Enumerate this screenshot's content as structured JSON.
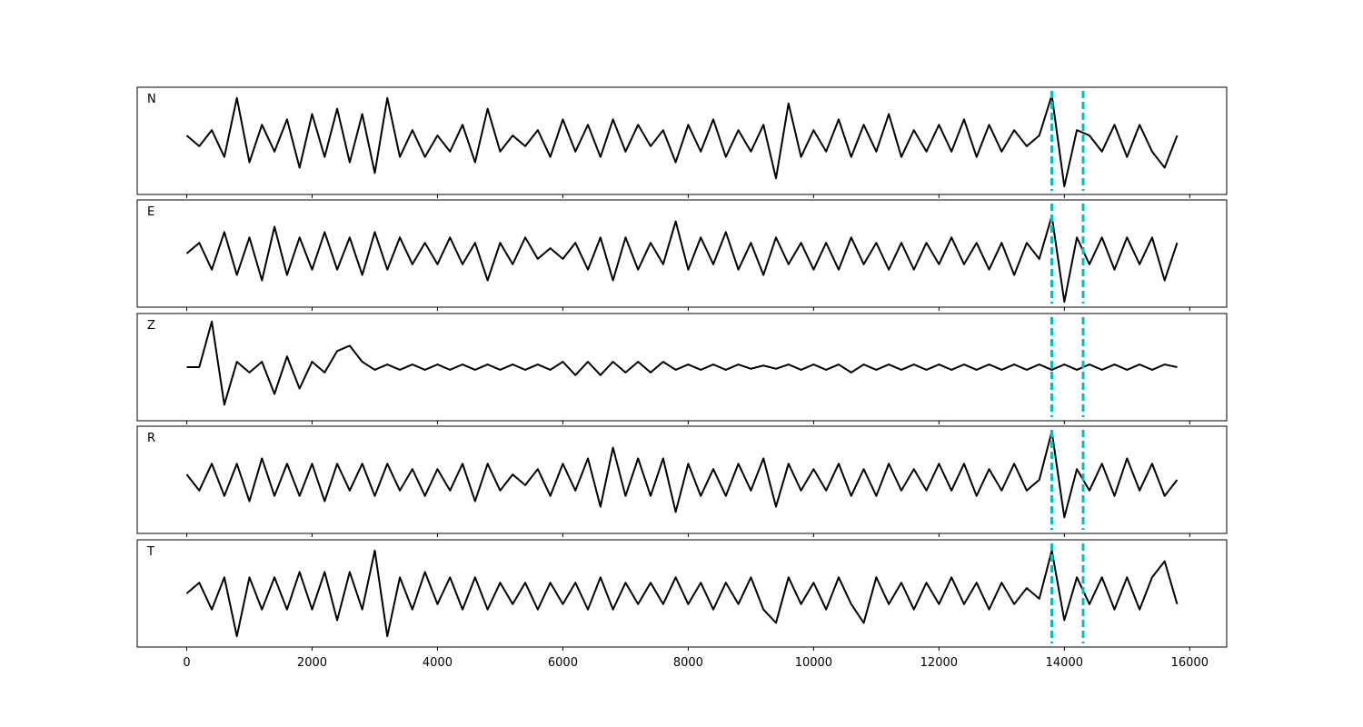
{
  "chart_data": [
    {
      "type": "line",
      "label": "N",
      "color": "#000000",
      "vlines": [
        13800,
        14300
      ],
      "vline_color": "#00bfbf",
      "xlim": [
        -790,
        16590
      ],
      "ylim": [
        -1,
        1
      ],
      "xticks": [
        0,
        2000,
        4000,
        6000,
        8000,
        10000,
        12000,
        14000,
        16000
      ],
      "x": [
        0,
        200,
        400,
        600,
        800,
        1000,
        1200,
        1400,
        1600,
        1800,
        2000,
        2200,
        2400,
        2600,
        2800,
        3000,
        3200,
        3400,
        3600,
        3800,
        4000,
        4200,
        4400,
        4600,
        4800,
        5000,
        5200,
        5400,
        5600,
        5800,
        6000,
        6200,
        6400,
        6600,
        6800,
        7000,
        7200,
        7400,
        7600,
        7800,
        8000,
        8200,
        8400,
        8600,
        8800,
        9000,
        9200,
        9400,
        9600,
        9800,
        10000,
        10200,
        10400,
        10600,
        10800,
        11000,
        11200,
        11400,
        11600,
        11800,
        12000,
        12200,
        12400,
        12600,
        12800,
        13000,
        13200,
        13400,
        13600,
        13800,
        14000,
        14200,
        14400,
        14600,
        14800,
        15000,
        15200,
        15400,
        15600,
        15800
      ],
      "values": [
        0.1,
        -0.1,
        0.2,
        -0.3,
        0.8,
        -0.4,
        0.3,
        -0.2,
        0.4,
        -0.5,
        0.5,
        -0.3,
        0.6,
        -0.4,
        0.5,
        -0.6,
        0.8,
        -0.3,
        0.2,
        -0.3,
        0.1,
        -0.2,
        0.3,
        -0.4,
        0.6,
        -0.2,
        0.1,
        -0.1,
        0.2,
        -0.3,
        0.4,
        -0.2,
        0.3,
        -0.3,
        0.4,
        -0.2,
        0.3,
        -0.1,
        0.2,
        -0.4,
        0.3,
        -0.2,
        0.4,
        -0.3,
        0.2,
        -0.2,
        0.3,
        -0.7,
        0.7,
        -0.3,
        0.2,
        -0.2,
        0.4,
        -0.3,
        0.3,
        -0.2,
        0.5,
        -0.3,
        0.2,
        -0.2,
        0.3,
        -0.2,
        0.4,
        -0.3,
        0.3,
        -0.2,
        0.2,
        -0.1,
        0.1,
        0.85,
        -0.85,
        0.2,
        0.1,
        -0.2,
        0.3,
        -0.3,
        0.3,
        -0.2,
        -0.5,
        0.1
      ]
    },
    {
      "type": "line",
      "label": "E",
      "color": "#000000",
      "vlines": [
        13800,
        14300
      ],
      "vline_color": "#00bfbf",
      "xlim": [
        -790,
        16590
      ],
      "ylim": [
        -1,
        1
      ],
      "xticks": [
        0,
        2000,
        4000,
        6000,
        8000,
        10000,
        12000,
        14000,
        16000
      ],
      "x": [
        0,
        200,
        400,
        600,
        800,
        1000,
        1200,
        1400,
        1600,
        1800,
        2000,
        2200,
        2400,
        2600,
        2800,
        3000,
        3200,
        3400,
        3600,
        3800,
        4000,
        4200,
        4400,
        4600,
        4800,
        5000,
        5200,
        5400,
        5600,
        5800,
        6000,
        6200,
        6400,
        6600,
        6800,
        7000,
        7200,
        7400,
        7600,
        7800,
        8000,
        8200,
        8400,
        8600,
        8800,
        9000,
        9200,
        9400,
        9600,
        9800,
        10000,
        10200,
        10400,
        10600,
        10800,
        11000,
        11200,
        11400,
        11600,
        11800,
        12000,
        12200,
        12400,
        12600,
        12800,
        13000,
        13200,
        13400,
        13600,
        13800,
        14000,
        14200,
        14400,
        14600,
        14800,
        15000,
        15200,
        15400,
        15600,
        15800
      ],
      "values": [
        0.0,
        0.2,
        -0.3,
        0.4,
        -0.4,
        0.3,
        -0.5,
        0.5,
        -0.4,
        0.3,
        -0.3,
        0.4,
        -0.3,
        0.3,
        -0.4,
        0.4,
        -0.3,
        0.3,
        -0.2,
        0.2,
        -0.2,
        0.3,
        -0.2,
        0.2,
        -0.5,
        0.2,
        -0.2,
        0.3,
        -0.1,
        0.1,
        -0.1,
        0.2,
        -0.3,
        0.3,
        -0.5,
        0.3,
        -0.3,
        0.2,
        -0.2,
        0.6,
        -0.3,
        0.3,
        -0.2,
        0.4,
        -0.3,
        0.2,
        -0.4,
        0.3,
        -0.2,
        0.2,
        -0.3,
        0.2,
        -0.3,
        0.3,
        -0.2,
        0.2,
        -0.3,
        0.2,
        -0.3,
        0.2,
        -0.2,
        0.3,
        -0.2,
        0.2,
        -0.3,
        0.2,
        -0.4,
        0.2,
        -0.1,
        0.7,
        -0.9,
        0.3,
        -0.2,
        0.3,
        -0.3,
        0.3,
        -0.2,
        0.3,
        -0.5,
        0.2
      ]
    },
    {
      "type": "line",
      "label": "Z",
      "color": "#000000",
      "vlines": [
        13800,
        14300
      ],
      "vline_color": "#00bfbf",
      "xlim": [
        -790,
        16590
      ],
      "ylim": [
        -1,
        1
      ],
      "xticks": [
        0,
        2000,
        4000,
        6000,
        8000,
        10000,
        12000,
        14000,
        16000
      ],
      "x": [
        0,
        200,
        400,
        600,
        800,
        1000,
        1200,
        1400,
        1600,
        1800,
        2000,
        2200,
        2400,
        2600,
        2800,
        3000,
        3200,
        3400,
        3600,
        3800,
        4000,
        4200,
        4400,
        4600,
        4800,
        5000,
        5200,
        5400,
        5600,
        5800,
        6000,
        6200,
        6400,
        6600,
        6800,
        7000,
        7200,
        7400,
        7600,
        7800,
        8000,
        8200,
        8400,
        8600,
        8800,
        9000,
        9200,
        9400,
        9600,
        9800,
        10000,
        10200,
        10400,
        10600,
        10800,
        11000,
        11200,
        11400,
        11600,
        11800,
        12000,
        12200,
        12400,
        12600,
        12800,
        13000,
        13200,
        13400,
        13600,
        13800,
        14000,
        14200,
        14400,
        14600,
        14800,
        15000,
        15200,
        15400,
        15600,
        15800
      ],
      "values": [
        0.0,
        0.0,
        0.85,
        -0.7,
        0.1,
        -0.1,
        0.1,
        -0.5,
        0.2,
        -0.4,
        0.1,
        -0.1,
        0.3,
        0.4,
        0.1,
        -0.05,
        0.05,
        -0.05,
        0.05,
        -0.05,
        0.05,
        -0.05,
        0.05,
        -0.05,
        0.05,
        -0.05,
        0.05,
        -0.05,
        0.05,
        -0.05,
        0.1,
        -0.15,
        0.1,
        -0.15,
        0.1,
        -0.1,
        0.1,
        -0.1,
        0.1,
        -0.05,
        0.05,
        -0.05,
        0.05,
        -0.05,
        0.05,
        -0.03,
        0.03,
        -0.03,
        0.05,
        -0.05,
        0.05,
        -0.05,
        0.05,
        -0.1,
        0.05,
        -0.05,
        0.05,
        -0.05,
        0.05,
        -0.05,
        0.05,
        -0.05,
        0.05,
        -0.05,
        0.05,
        -0.05,
        0.05,
        -0.05,
        0.05,
        -0.05,
        0.05,
        -0.05,
        0.05,
        -0.05,
        0.05,
        -0.05,
        0.05,
        -0.05,
        0.05,
        0.0
      ]
    },
    {
      "type": "line",
      "label": "R",
      "color": "#000000",
      "vlines": [
        13800,
        14300
      ],
      "vline_color": "#00bfbf",
      "xlim": [
        -790,
        16590
      ],
      "ylim": [
        -1,
        1
      ],
      "xticks": [
        0,
        2000,
        4000,
        6000,
        8000,
        10000,
        12000,
        14000,
        16000
      ],
      "x": [
        0,
        200,
        400,
        600,
        800,
        1000,
        1200,
        1400,
        1600,
        1800,
        2000,
        2200,
        2400,
        2600,
        2800,
        3000,
        3200,
        3400,
        3600,
        3800,
        4000,
        4200,
        4400,
        4600,
        4800,
        5000,
        5200,
        5400,
        5600,
        5800,
        6000,
        6200,
        6400,
        6600,
        6800,
        7000,
        7200,
        7400,
        7600,
        7800,
        8000,
        8200,
        8400,
        8600,
        8800,
        9000,
        9200,
        9400,
        9600,
        9800,
        10000,
        10200,
        10400,
        10600,
        10800,
        11000,
        11200,
        11400,
        11600,
        11800,
        12000,
        12200,
        12400,
        12600,
        12800,
        13000,
        13200,
        13400,
        13600,
        13800,
        14000,
        14200,
        14400,
        14600,
        14800,
        15000,
        15200,
        15400,
        15600,
        15800
      ],
      "values": [
        0.1,
        -0.2,
        0.3,
        -0.3,
        0.3,
        -0.4,
        0.4,
        -0.3,
        0.3,
        -0.3,
        0.3,
        -0.4,
        0.3,
        -0.2,
        0.3,
        -0.3,
        0.3,
        -0.2,
        0.2,
        -0.3,
        0.2,
        -0.2,
        0.3,
        -0.4,
        0.3,
        -0.2,
        0.1,
        -0.1,
        0.2,
        -0.3,
        0.3,
        -0.2,
        0.4,
        -0.5,
        0.6,
        -0.3,
        0.4,
        -0.3,
        0.4,
        -0.6,
        0.3,
        -0.3,
        0.2,
        -0.3,
        0.3,
        -0.2,
        0.4,
        -0.5,
        0.3,
        -0.2,
        0.2,
        -0.2,
        0.3,
        -0.3,
        0.2,
        -0.3,
        0.3,
        -0.2,
        0.2,
        -0.2,
        0.3,
        -0.2,
        0.3,
        -0.3,
        0.2,
        -0.2,
        0.3,
        -0.2,
        0.0,
        0.9,
        -0.7,
        0.2,
        -0.2,
        0.3,
        -0.3,
        0.4,
        -0.2,
        0.3,
        -0.3,
        0.0
      ]
    },
    {
      "type": "line",
      "label": "T",
      "color": "#000000",
      "vlines": [
        13800,
        14300
      ],
      "vline_color": "#00bfbf",
      "xlim": [
        -790,
        16590
      ],
      "ylim": [
        -1,
        1
      ],
      "xticks": [
        0,
        2000,
        4000,
        6000,
        8000,
        10000,
        12000,
        14000,
        16000
      ],
      "x": [
        0,
        200,
        400,
        600,
        800,
        1000,
        1200,
        1400,
        1600,
        1800,
        2000,
        2200,
        2400,
        2600,
        2800,
        3000,
        3200,
        3400,
        3600,
        3800,
        4000,
        4200,
        4400,
        4600,
        4800,
        5000,
        5200,
        5400,
        5600,
        5800,
        6000,
        6200,
        6400,
        6600,
        6800,
        7000,
        7200,
        7400,
        7600,
        7800,
        8000,
        8200,
        8400,
        8600,
        8800,
        9000,
        9200,
        9400,
        9600,
        9800,
        10000,
        10200,
        10400,
        10600,
        10800,
        11000,
        11200,
        11400,
        11600,
        11800,
        12000,
        12200,
        12400,
        12600,
        12800,
        13000,
        13200,
        13400,
        13600,
        13800,
        14000,
        14200,
        14400,
        14600,
        14800,
        15000,
        15200,
        15400,
        15600,
        15800
      ],
      "values": [
        0.0,
        0.2,
        -0.3,
        0.3,
        -0.8,
        0.3,
        -0.3,
        0.3,
        -0.3,
        0.4,
        -0.3,
        0.4,
        -0.5,
        0.4,
        -0.3,
        0.8,
        -0.8,
        0.3,
        -0.3,
        0.4,
        -0.2,
        0.3,
        -0.3,
        0.3,
        -0.3,
        0.2,
        -0.2,
        0.2,
        -0.3,
        0.2,
        -0.2,
        0.2,
        -0.3,
        0.3,
        -0.3,
        0.2,
        -0.2,
        0.2,
        -0.2,
        0.3,
        -0.2,
        0.2,
        -0.3,
        0.2,
        -0.2,
        0.3,
        -0.3,
        -0.55,
        0.3,
        -0.2,
        0.2,
        -0.3,
        0.3,
        -0.2,
        -0.55,
        0.3,
        -0.2,
        0.2,
        -0.3,
        0.2,
        -0.2,
        0.3,
        -0.2,
        0.2,
        -0.3,
        0.2,
        -0.2,
        0.1,
        -0.1,
        0.8,
        -0.5,
        0.3,
        -0.2,
        0.3,
        -0.3,
        0.3,
        -0.3,
        0.3,
        0.6,
        -0.2
      ]
    }
  ]
}
